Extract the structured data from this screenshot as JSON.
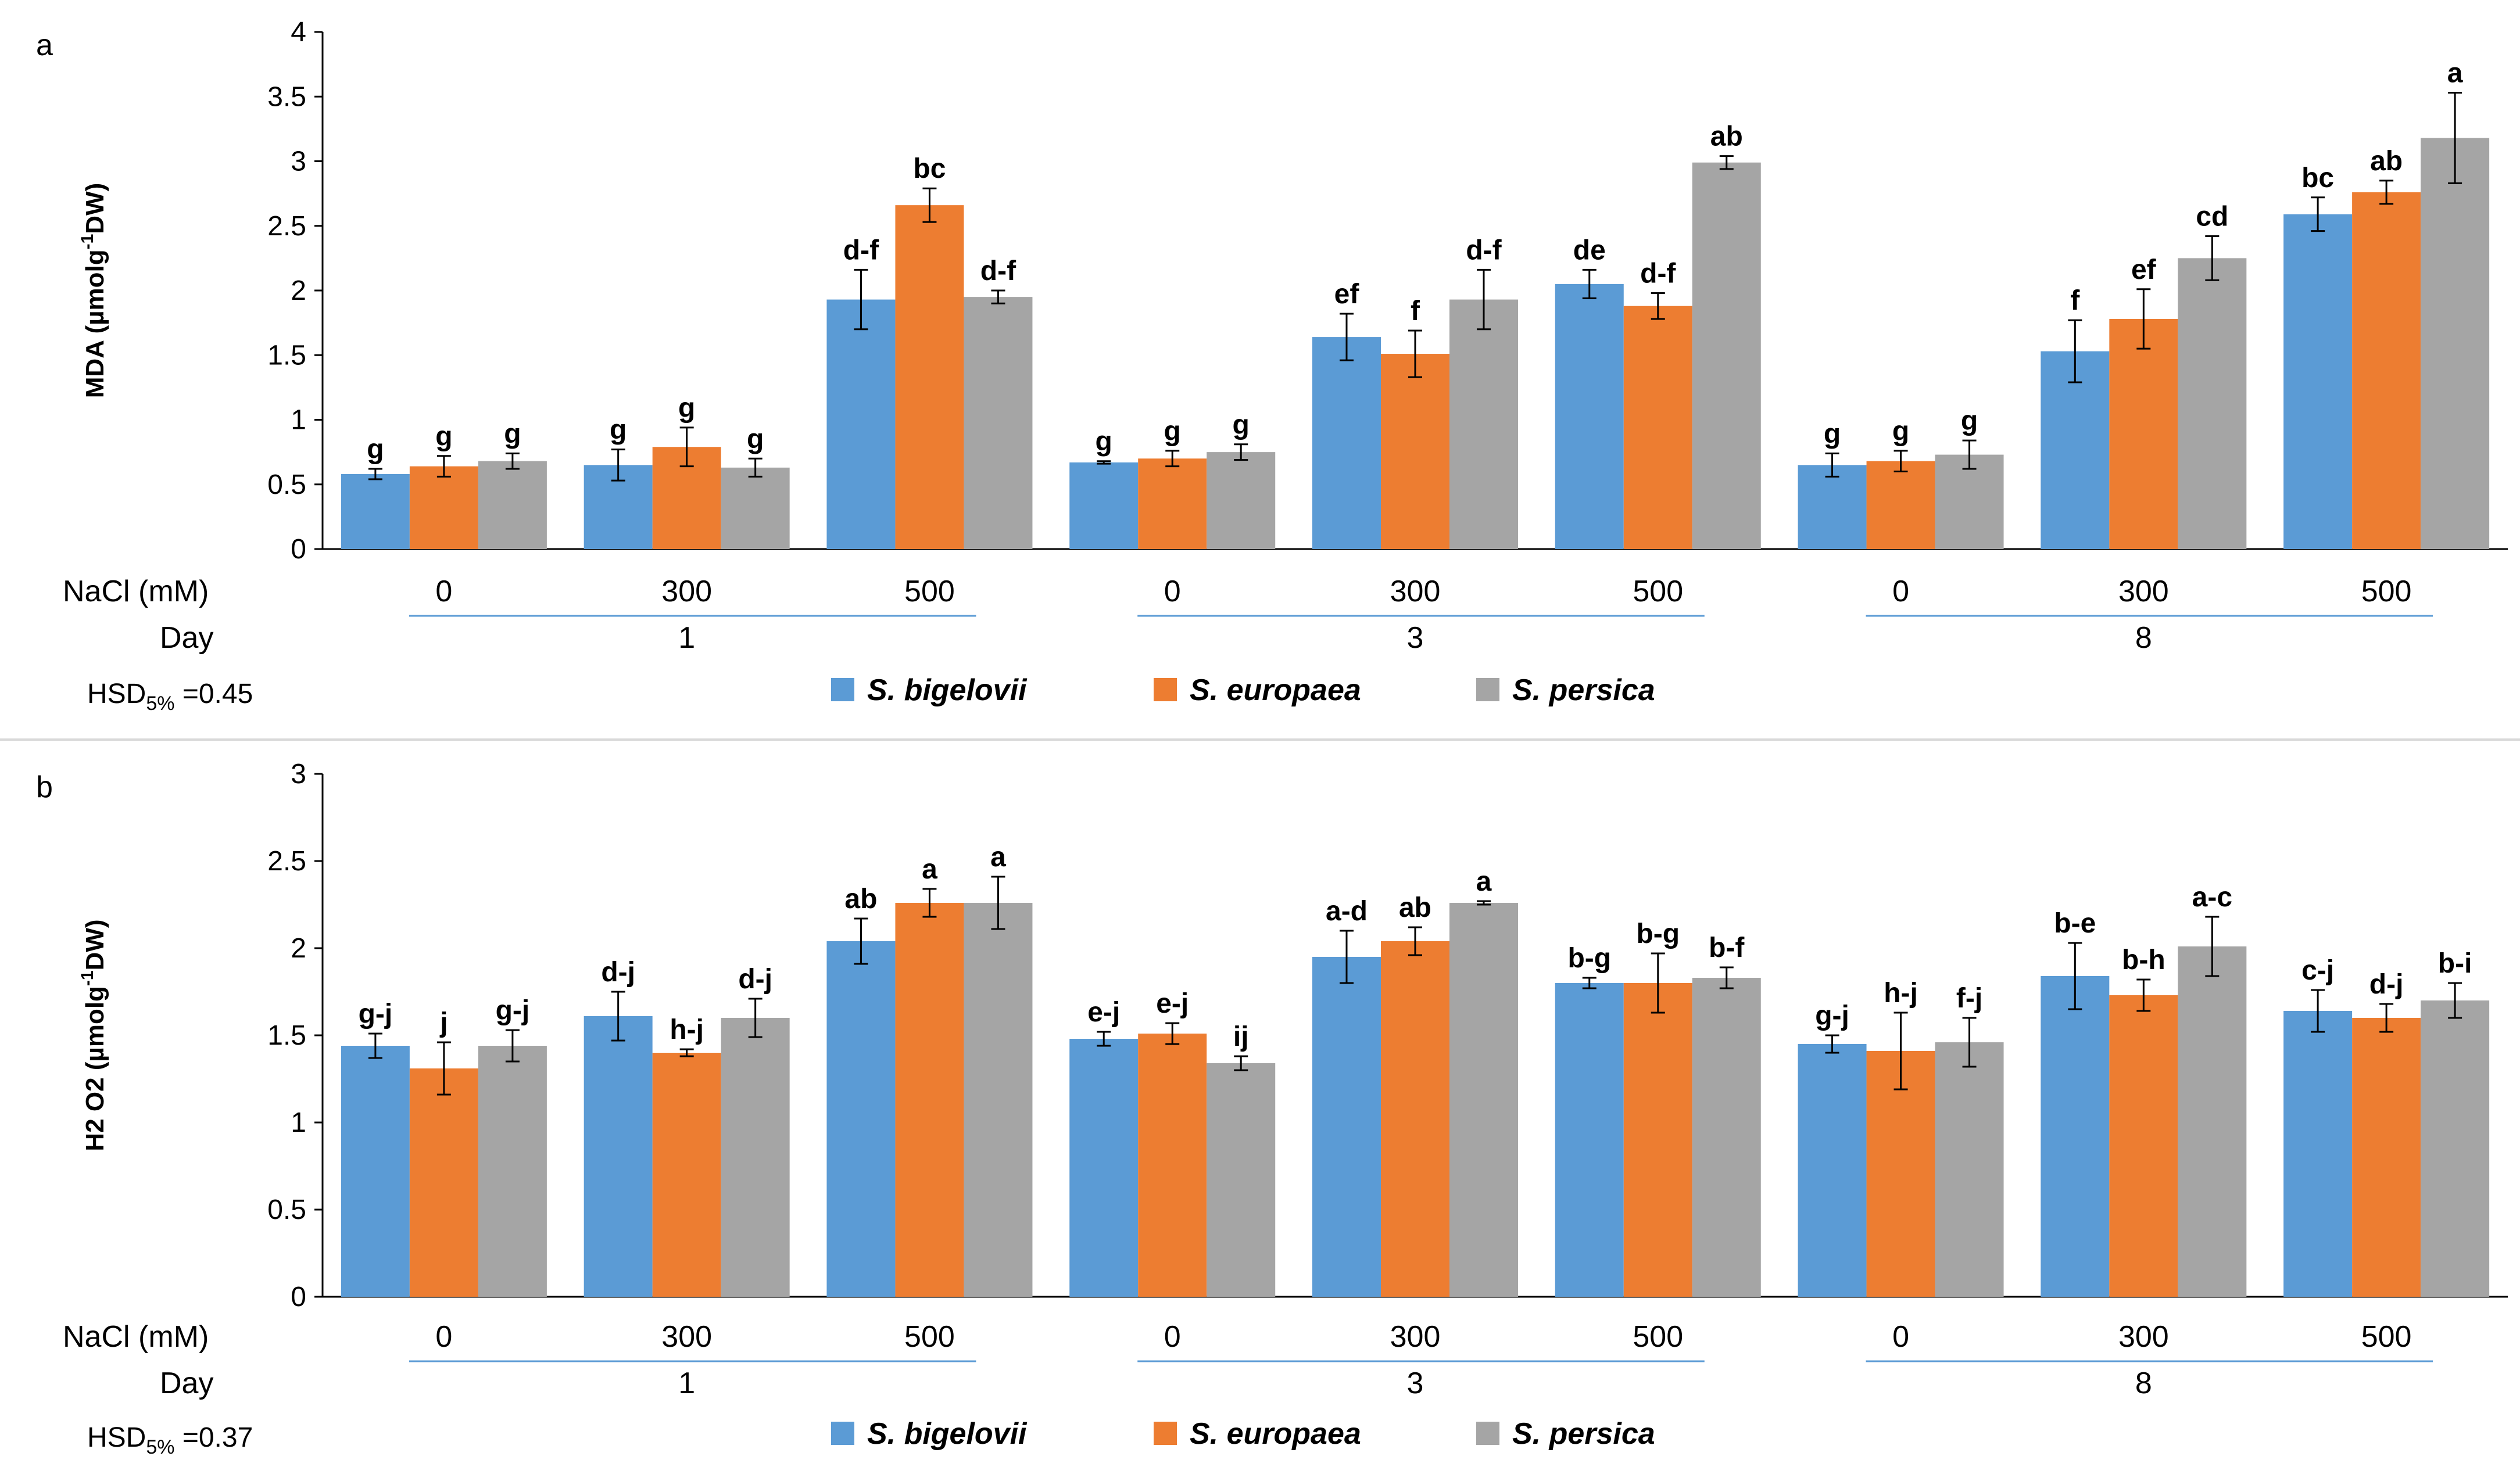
{
  "chart_data": [
    {
      "type": "bar",
      "panel_label": "a",
      "ylabel_main": "MDA (µmolg",
      "ylabel_sup": "-1",
      "ylabel_tail": "DW)",
      "ylim": [
        0,
        4
      ],
      "yticks": [
        "0",
        "0.5",
        "1",
        "1.5",
        "2",
        "2.5",
        "3",
        "3.5",
        "4"
      ],
      "nacl_label": "NaCl (mM)",
      "day_label": "Day",
      "nacl_levels": [
        "0",
        "300",
        "500",
        "0",
        "300",
        "500",
        "0",
        "300",
        "500"
      ],
      "days": [
        "1",
        "3",
        "8"
      ],
      "hsd_prefix": "HSD",
      "hsd_sub": "5%",
      "hsd_value": " =0.45",
      "series": [
        {
          "name": "S. bigelovii",
          "values": [
            0.58,
            0.65,
            1.93,
            0.67,
            1.64,
            2.05,
            0.65,
            1.53,
            2.59
          ],
          "errors": [
            0.04,
            0.12,
            0.23,
            0.01,
            0.18,
            0.11,
            0.09,
            0.24,
            0.13
          ],
          "letters": [
            "g",
            "g",
            "d-f",
            "g",
            "ef",
            "de",
            "g",
            "f",
            "bc"
          ]
        },
        {
          "name": "S. europaea",
          "values": [
            0.64,
            0.79,
            2.66,
            0.7,
            1.51,
            1.88,
            0.68,
            1.78,
            2.76
          ],
          "errors": [
            0.08,
            0.15,
            0.13,
            0.06,
            0.18,
            0.1,
            0.08,
            0.23,
            0.09
          ],
          "letters": [
            "g",
            "g",
            "bc",
            "g",
            "f",
            "d-f",
            "g",
            "ef",
            "ab"
          ]
        },
        {
          "name": "S. persica",
          "values": [
            0.68,
            0.63,
            1.95,
            0.75,
            1.93,
            2.99,
            0.73,
            2.25,
            3.18
          ],
          "errors": [
            0.06,
            0.07,
            0.05,
            0.06,
            0.23,
            0.05,
            0.11,
            0.17,
            0.35
          ],
          "letters": [
            "g",
            "g",
            "d-f",
            "g",
            "d-f",
            "ab",
            "g",
            "cd",
            "a"
          ]
        }
      ],
      "colors": [
        "#5b9bd5",
        "#ed7d31",
        "#a5a5a5"
      ]
    },
    {
      "type": "bar",
      "panel_label": "b",
      "ylabel_main": "H2 O2 (µmolg",
      "ylabel_sup": "-1",
      "ylabel_tail": "DW)",
      "ylim": [
        0,
        3
      ],
      "yticks": [
        "0",
        "0.5",
        "1",
        "1.5",
        "2",
        "2.5",
        "3"
      ],
      "nacl_label": "NaCl (mM)",
      "day_label": "Day",
      "nacl_levels": [
        "0",
        "300",
        "500",
        "0",
        "300",
        "500",
        "0",
        "300",
        "500"
      ],
      "days": [
        "1",
        "3",
        "8"
      ],
      "hsd_prefix": "HSD",
      "hsd_sub": "5%",
      "hsd_value": " =0.37",
      "series": [
        {
          "name": "S. bigelovii",
          "values": [
            1.44,
            1.61,
            2.04,
            1.48,
            1.95,
            1.8,
            1.45,
            1.84,
            1.64
          ],
          "errors": [
            0.07,
            0.14,
            0.13,
            0.04,
            0.15,
            0.03,
            0.05,
            0.19,
            0.12
          ],
          "letters": [
            "g-j",
            "d-j",
            "ab",
            "e-j",
            "a-d",
            "b-g",
            "g-j",
            "b-e",
            "c-j"
          ]
        },
        {
          "name": "S. europaea",
          "values": [
            1.31,
            1.4,
            2.26,
            1.51,
            2.04,
            1.8,
            1.41,
            1.73,
            1.6
          ],
          "errors": [
            0.15,
            0.02,
            0.08,
            0.06,
            0.08,
            0.17,
            0.22,
            0.09,
            0.08
          ],
          "letters": [
            "j",
            "h-j",
            "a",
            "e-j",
            "ab",
            "b-g",
            "h-j",
            "b-h",
            "d-j"
          ]
        },
        {
          "name": "S. persica",
          "values": [
            1.44,
            1.6,
            2.26,
            1.34,
            2.26,
            1.83,
            1.46,
            2.01,
            1.7
          ],
          "errors": [
            0.09,
            0.11,
            0.15,
            0.04,
            0.01,
            0.06,
            0.14,
            0.17,
            0.1
          ],
          "letters": [
            "g-j",
            "d-j",
            "a",
            "ij",
            "a",
            "b-f",
            "f-j",
            "a-c",
            "b-i"
          ]
        }
      ],
      "colors": [
        "#5b9bd5",
        "#ed7d31",
        "#a5a5a5"
      ]
    }
  ]
}
